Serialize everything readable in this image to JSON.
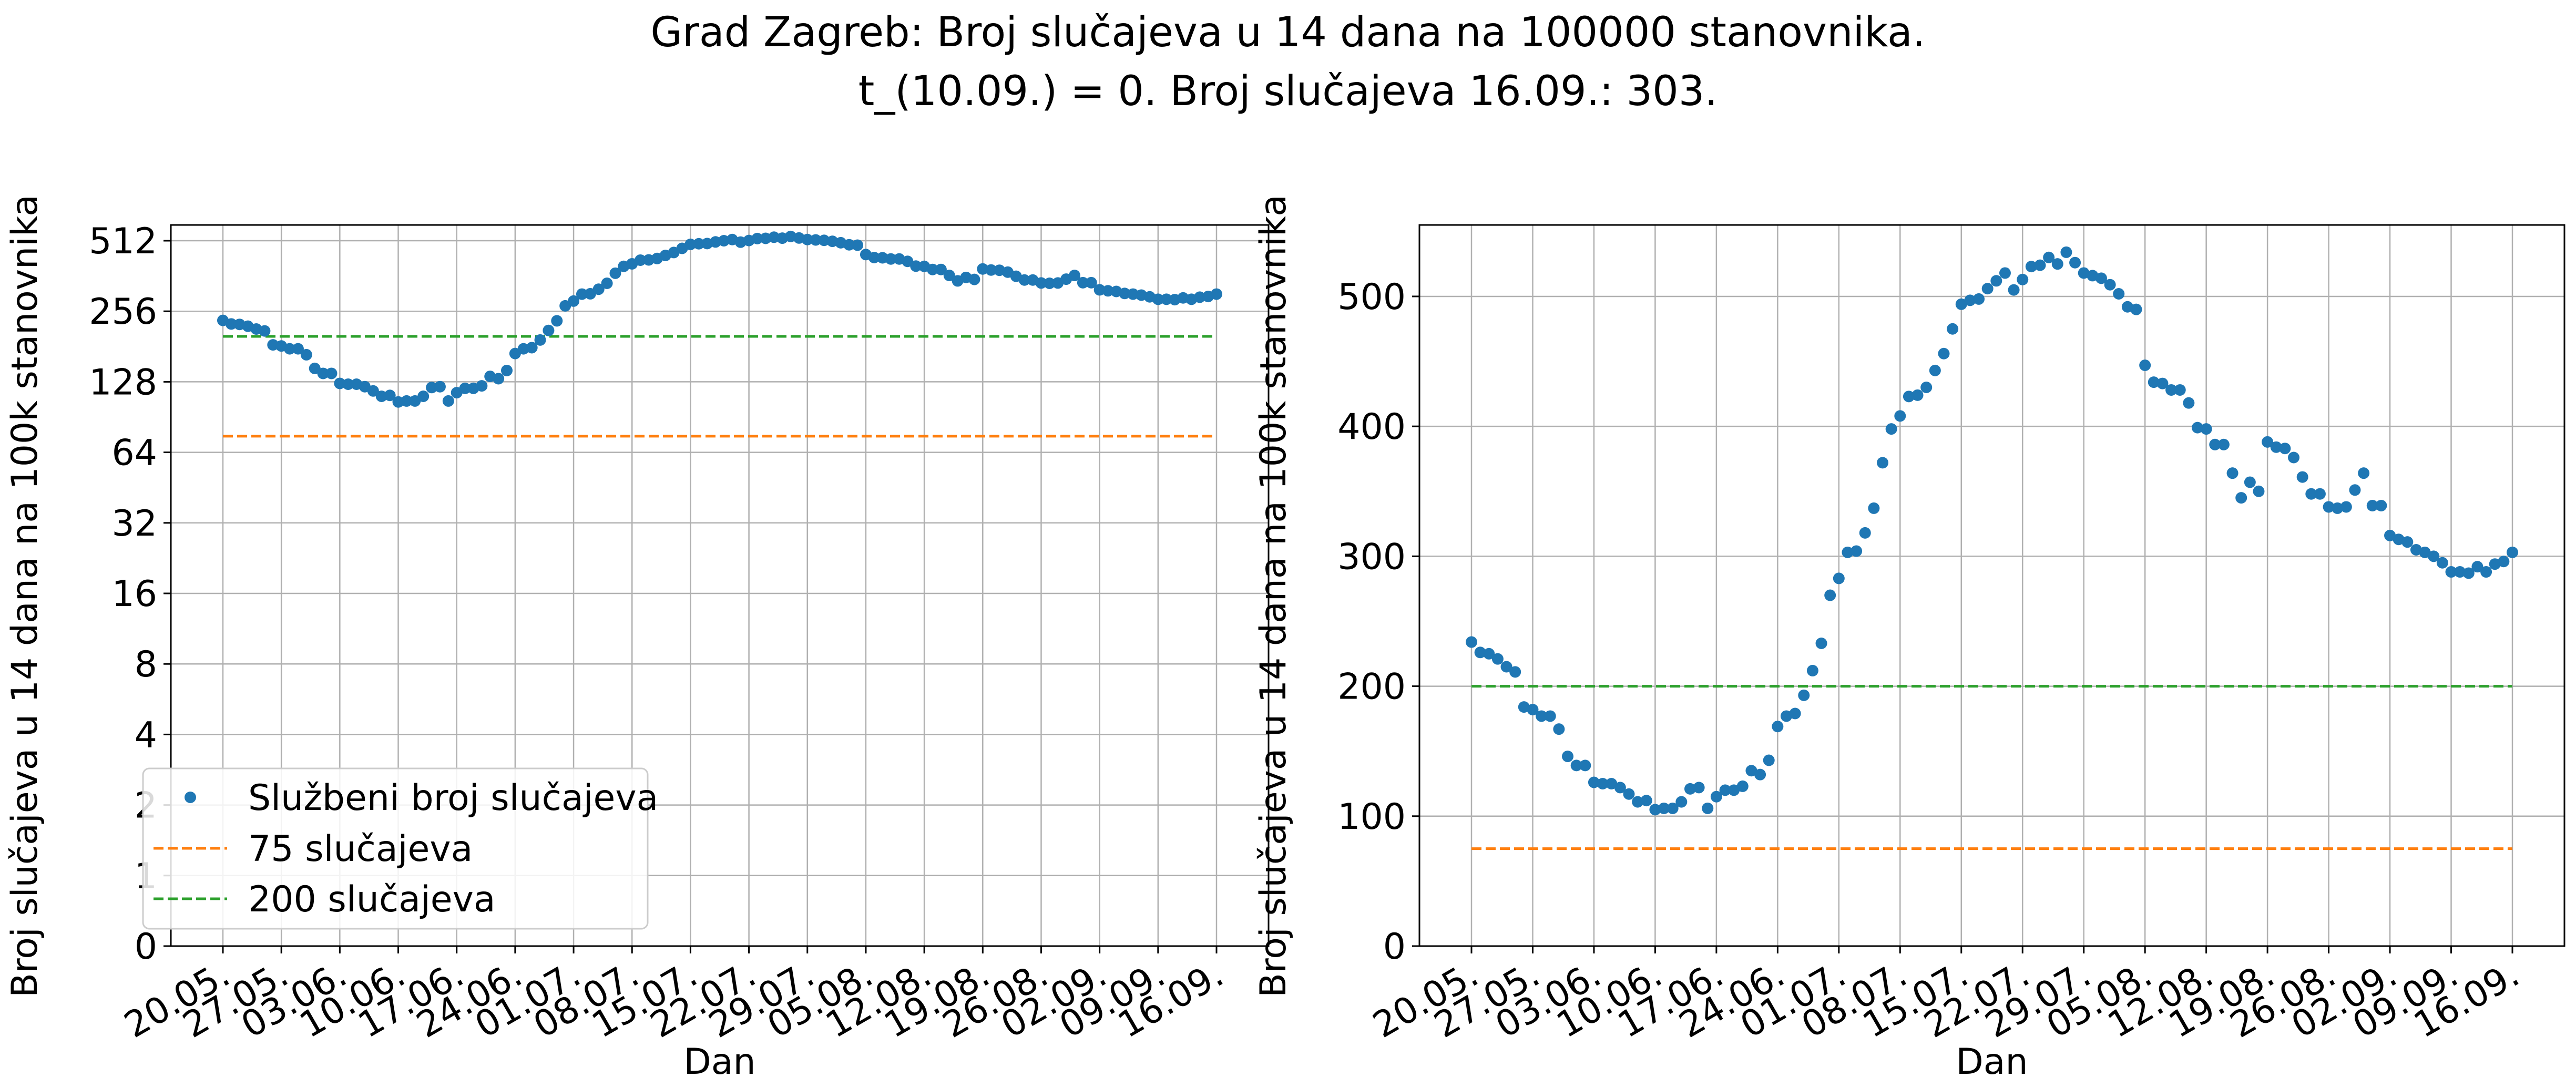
{
  "title_line1": "Grad Zagreb: Broj slučajeva u 14 dana na 100000 stanovnika.",
  "title_line2": "t_(10.09.) = 0. Broj slučajeva 16.09.: 303.",
  "colors": {
    "series": "#1f77b4",
    "line75": "#ff7f0e",
    "line200": "#2ca02c",
    "grid": "#b0b0b0"
  },
  "chart_data": [
    {
      "type": "scatter",
      "yscale": "log2",
      "xlabel": "Dan",
      "ylabel": "Broj slučajeva u 14 dana na 100k stanovnika",
      "x_ticks": [
        "20.05.",
        "27.05.",
        "03.06.",
        "10.06.",
        "17.06.",
        "24.06.",
        "01.07.",
        "08.07.",
        "15.07.",
        "22.07.",
        "29.07.",
        "05.08.",
        "12.08.",
        "19.08.",
        "26.08.",
        "02.09.",
        "09.09.",
        "16.09."
      ],
      "y_ticks": [
        "0",
        "1",
        "2",
        "4",
        "8",
        "16",
        "32",
        "64",
        "128",
        "256",
        "512"
      ],
      "grid": true,
      "legend_position": "lower-left",
      "legend": [
        "Službeni broj slučajeva",
        "75 slučajeva",
        "200 slučajeva"
      ]
    },
    {
      "type": "scatter",
      "yscale": "linear",
      "xlabel": "Dan",
      "ylabel": "Broj slučajeva u 14 dana na 100k stanovnika",
      "ylim": [
        0,
        555
      ],
      "x_ticks": [
        "20.05.",
        "27.05.",
        "03.06.",
        "10.06.",
        "17.06.",
        "24.06.",
        "01.07.",
        "08.07.",
        "15.07.",
        "22.07.",
        "29.07.",
        "05.08.",
        "12.08.",
        "19.08.",
        "26.08.",
        "02.09.",
        "09.09.",
        "16.09."
      ],
      "y_ticks": [
        "0",
        "100",
        "200",
        "300",
        "400",
        "500"
      ],
      "grid": true
    }
  ],
  "series": {
    "name": "Službeni broj slučajeva",
    "start_date": "20.05.",
    "end_date": "16.09.",
    "values": [
      234,
      226,
      225,
      221,
      215,
      211,
      184,
      182,
      177,
      177,
      167,
      146,
      139,
      139,
      126,
      125,
      125,
      122,
      117,
      111,
      112,
      105,
      106,
      106,
      111,
      121,
      122,
      106,
      115,
      120,
      120,
      123,
      135,
      132,
      143,
      169,
      177,
      179,
      193,
      212,
      233,
      270,
      283,
      303,
      304,
      318,
      337,
      372,
      398,
      408,
      423,
      424,
      430,
      443,
      456,
      475,
      494,
      497,
      498,
      506,
      512,
      518,
      505,
      513,
      523,
      524,
      530,
      525,
      534,
      526,
      518,
      516,
      514,
      509,
      502,
      492,
      490,
      447,
      434,
      433,
      428,
      428,
      418,
      399,
      398,
      386,
      386,
      364,
      345,
      357,
      350,
      388,
      384,
      383,
      376,
      361,
      348,
      348,
      338,
      337,
      338,
      351,
      364,
      339,
      339,
      316,
      313,
      311,
      305,
      303,
      300,
      295,
      288,
      288,
      287,
      292,
      288,
      294,
      296,
      303
    ]
  },
  "thresholds": [
    {
      "name": "75 slučajeva",
      "value": 75
    },
    {
      "name": "200 slučajeva",
      "value": 200
    }
  ]
}
